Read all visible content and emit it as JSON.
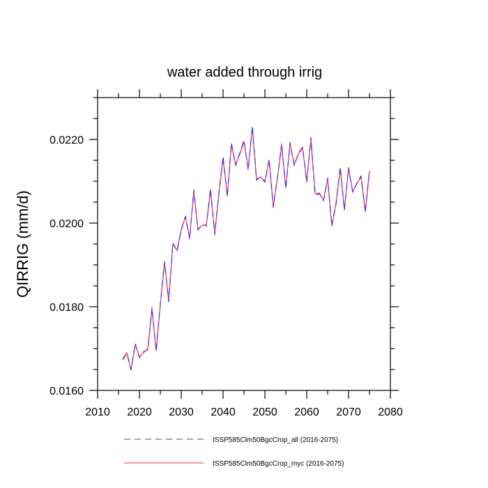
{
  "chart_data": {
    "type": "line",
    "title": "water added through irrig",
    "xlabel": "",
    "ylabel": "QIRRIG  (mm/d)",
    "xlim": [
      2010,
      2080
    ],
    "ylim": [
      0.016,
      0.023
    ],
    "x_ticks": [
      2010,
      2020,
      2030,
      2040,
      2050,
      2060,
      2070,
      2080
    ],
    "x_tick_labels": [
      "2010",
      "2020",
      "2030",
      "2040",
      "2050",
      "2060",
      "2070",
      "2080"
    ],
    "y_ticks": [
      0.016,
      0.018,
      0.02,
      0.022
    ],
    "y_tick_labels": [
      "0.0160",
      "0.0180",
      "0.0200",
      "0.0220"
    ],
    "grid": false,
    "legend_position": "bottom",
    "x": [
      2016,
      2017,
      2018,
      2019,
      2020,
      2021,
      2022,
      2023,
      2024,
      2025,
      2026,
      2027,
      2028,
      2029,
      2030,
      2031,
      2032,
      2033,
      2034,
      2035,
      2036,
      2037,
      2038,
      2039,
      2040,
      2041,
      2042,
      2043,
      2044,
      2045,
      2046,
      2047,
      2048,
      2049,
      2050,
      2051,
      2052,
      2053,
      2054,
      2055,
      2056,
      2057,
      2058,
      2059,
      2060,
      2061,
      2062,
      2063,
      2064,
      2065,
      2066,
      2067,
      2068,
      2069,
      2070,
      2071,
      2072,
      2073,
      2074,
      2075
    ],
    "series": [
      {
        "name": "ISSP585Clm50BgcCrop_all (2016-2075)",
        "color": "#3b3bff",
        "dash": "dashed",
        "values": [
          0.01673,
          0.01688,
          0.01648,
          0.01712,
          0.01678,
          0.01693,
          0.01697,
          0.01798,
          0.01693,
          0.01808,
          0.01908,
          0.01812,
          0.01953,
          0.01933,
          0.01983,
          0.02017,
          0.01962,
          0.0208,
          0.01983,
          0.01997,
          0.01993,
          0.02082,
          0.01972,
          0.02073,
          0.0216,
          0.02063,
          0.02192,
          0.02137,
          0.02168,
          0.02198,
          0.02127,
          0.02233,
          0.02102,
          0.02112,
          0.02097,
          0.02153,
          0.02037,
          0.0211,
          0.0219,
          0.02082,
          0.02193,
          0.02137,
          0.02167,
          0.02182,
          0.02097,
          0.02205,
          0.02067,
          0.0207,
          0.02053,
          0.02108,
          0.01992,
          0.02045,
          0.02135,
          0.0203,
          0.02133,
          0.02073,
          0.02097,
          0.02113,
          0.02025,
          0.02127
        ]
      },
      {
        "name": "ISSP585Clm50BgcCrop_myc (2016-2075)",
        "color": "#ff2a2a",
        "dash": "solid",
        "values": [
          0.01675,
          0.0169,
          0.0165,
          0.0171,
          0.0168,
          0.0169,
          0.017,
          0.01795,
          0.01695,
          0.01805,
          0.01905,
          0.01815,
          0.0195,
          0.01935,
          0.01985,
          0.02015,
          0.01965,
          0.02075,
          0.01985,
          0.01995,
          0.01995,
          0.0208,
          0.01975,
          0.0207,
          0.02155,
          0.02065,
          0.02188,
          0.0214,
          0.02165,
          0.02195,
          0.0213,
          0.02228,
          0.02105,
          0.0211,
          0.021,
          0.0215,
          0.0204,
          0.02108,
          0.02185,
          0.02085,
          0.0219,
          0.0214,
          0.02165,
          0.0218,
          0.021,
          0.022,
          0.0207,
          0.02072,
          0.02055,
          0.02105,
          0.01995,
          0.02048,
          0.0213,
          0.02033,
          0.0213,
          0.02075,
          0.02095,
          0.0211,
          0.02028,
          0.02125
        ]
      }
    ]
  }
}
